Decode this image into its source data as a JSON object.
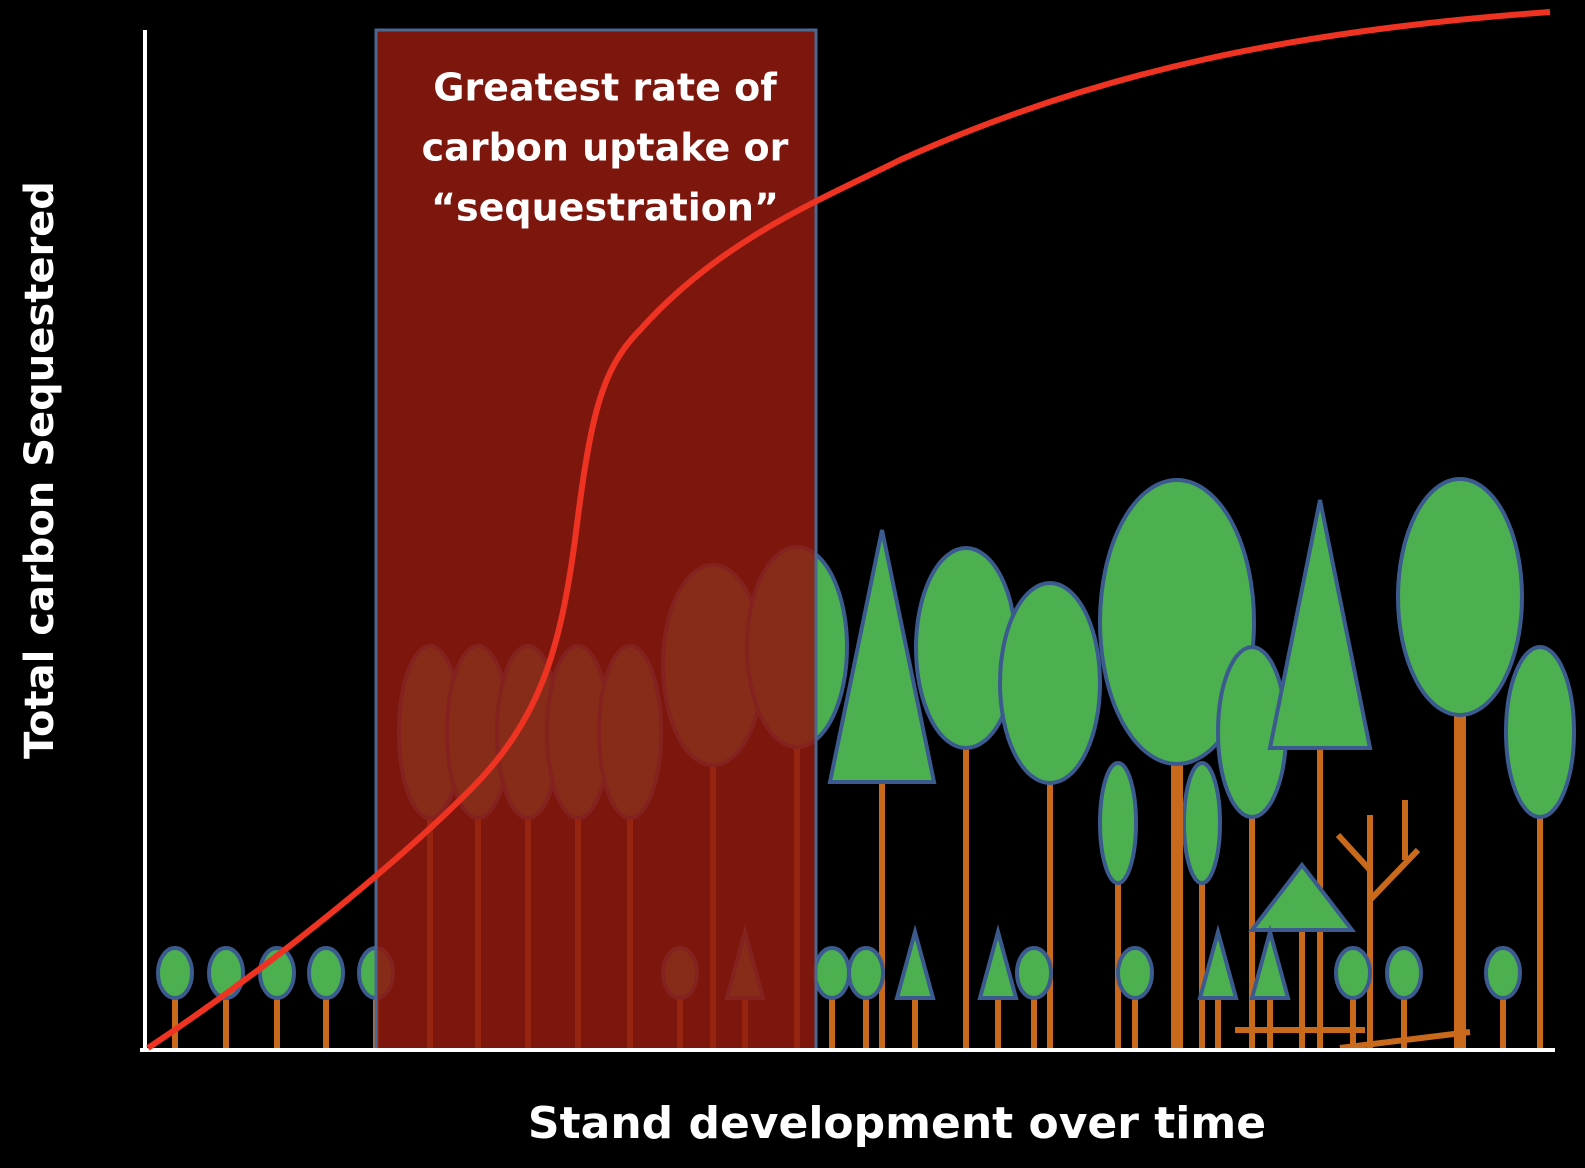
{
  "annotation": {
    "lines": [
      "Greatest rate of",
      "carbon uptake or",
      "“sequestration”"
    ]
  },
  "y_axis_label": "Total carbon Sequestered",
  "x_axis_label": "Stand development over time"
}
